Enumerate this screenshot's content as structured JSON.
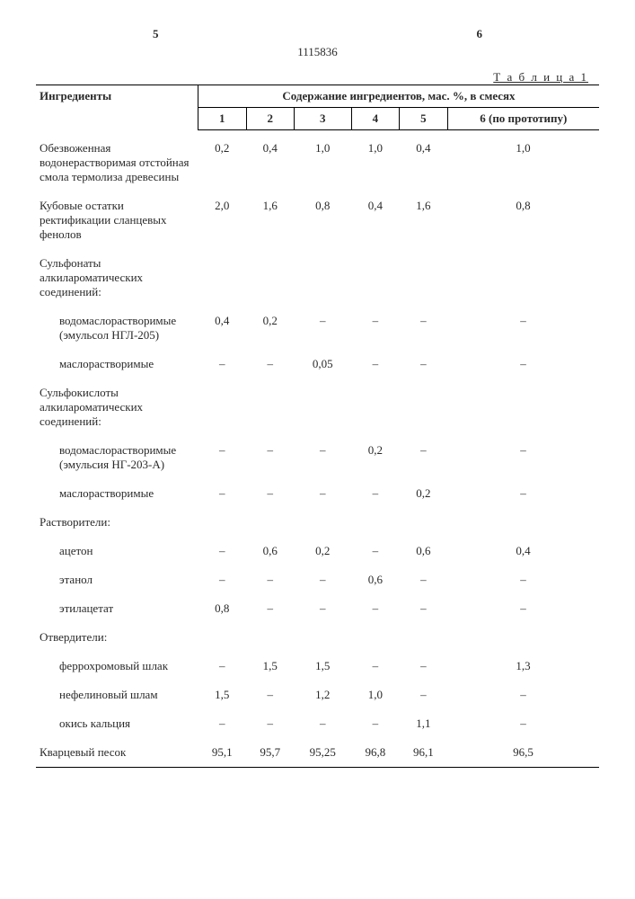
{
  "page_left": "5",
  "page_right": "6",
  "doc_number": "1115836",
  "table_label": "Т а б л и ц а  1",
  "header": {
    "ingredient": "Ингредиенты",
    "mix_span": "Содержание ингредиентов, мас. %, в смесях",
    "cols": [
      "1",
      "2",
      "3",
      "4",
      "5",
      "6 (по прототипу)"
    ]
  },
  "rows": [
    {
      "label": "Обезвоженная водонерастворимая отстойная смола термолиза древесины",
      "vals": [
        "0,2",
        "0,4",
        "1,0",
        "1,0",
        "0,4",
        "1,0"
      ],
      "space": true
    },
    {
      "label": "Кубовые остатки ректификации сланцевых фенолов",
      "vals": [
        "2,0",
        "1,6",
        "0,8",
        "0,4",
        "1,6",
        "0,8"
      ],
      "space": true
    },
    {
      "label": "Сульфонаты алкилароматических соединений:",
      "header": true,
      "space": true
    },
    {
      "label": "водомаслорастворимые (эмульсол НГЛ-205)",
      "vals": [
        "0,4",
        "0,2",
        "–",
        "–",
        "–",
        "–"
      ],
      "indent": true,
      "space": true
    },
    {
      "label": "маслорастворимые",
      "vals": [
        "–",
        "–",
        "0,05",
        "–",
        "–",
        "–"
      ],
      "indent": true,
      "space": true
    },
    {
      "label": "Сульфокислоты алкилароматических соединений:",
      "header": true,
      "space": true
    },
    {
      "label": "водомаслорастворимые (эмульсия НГ-203-А)",
      "vals": [
        "–",
        "–",
        "–",
        "0,2",
        "–",
        "–"
      ],
      "indent": true,
      "space": true
    },
    {
      "label": "маслорастворимые",
      "vals": [
        "–",
        "–",
        "–",
        "–",
        "0,2",
        "–"
      ],
      "indent": true,
      "space": true
    },
    {
      "label": "Растворители:",
      "header": true,
      "space": true
    },
    {
      "label": "ацетон",
      "vals": [
        "–",
        "0,6",
        "0,2",
        "–",
        "0,6",
        "0,4"
      ],
      "indent": true,
      "space": true
    },
    {
      "label": "этанол",
      "vals": [
        "–",
        "–",
        "–",
        "0,6",
        "–",
        "–"
      ],
      "indent": true,
      "space": true
    },
    {
      "label": "этилацетат",
      "vals": [
        "0,8",
        "–",
        "–",
        "–",
        "–",
        "–"
      ],
      "indent": true,
      "space": true
    },
    {
      "label": "Отвердители:",
      "header": true,
      "space": true
    },
    {
      "label": "феррохромовый шлак",
      "vals": [
        "–",
        "1,5",
        "1,5",
        "–",
        "–",
        "1,3"
      ],
      "indent": true,
      "space": true
    },
    {
      "label": "нефелиновый шлам",
      "vals": [
        "1,5",
        "–",
        "1,2",
        "1,0",
        "–",
        "–"
      ],
      "indent": true,
      "space": true
    },
    {
      "label": "окись кальция",
      "vals": [
        "–",
        "–",
        "–",
        "–",
        "1,1",
        "–"
      ],
      "indent": true,
      "space": true
    },
    {
      "label": "Кварцевый песок",
      "vals": [
        "95,1",
        "95,7",
        "95,25",
        "96,8",
        "96,1",
        "96,5"
      ],
      "space": true,
      "last": true
    }
  ]
}
